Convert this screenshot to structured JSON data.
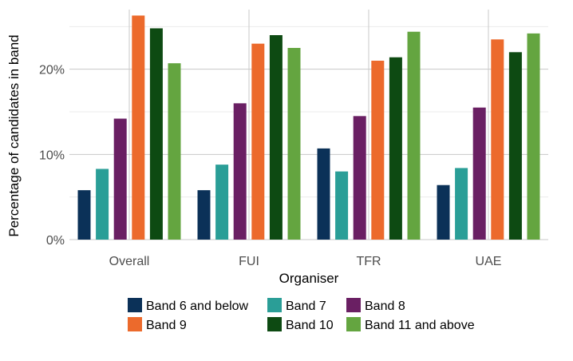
{
  "chart_data": {
    "type": "bar",
    "title": "",
    "xlabel": "Organiser",
    "ylabel": "Percentage of candidates in band",
    "categories": [
      "Overall",
      "FUI",
      "TFR",
      "UAE"
    ],
    "ylim": [
      0,
      27
    ],
    "yticks": [
      {
        "value": 0,
        "label": "0%"
      },
      {
        "value": 10,
        "label": "10%"
      },
      {
        "value": 20,
        "label": "20%"
      }
    ],
    "grid": true,
    "legend_position": "bottom",
    "series": [
      {
        "name": "Band 6 and below",
        "color": "#0b3158",
        "values": [
          5.8,
          5.8,
          10.7,
          6.4
        ]
      },
      {
        "name": "Band 7",
        "color": "#2a9e97",
        "values": [
          8.3,
          8.8,
          8.0,
          8.4
        ]
      },
      {
        "name": "Band 8",
        "color": "#6a1f63",
        "values": [
          14.2,
          16.0,
          14.5,
          15.5
        ]
      },
      {
        "name": "Band 9",
        "color": "#ec6a2c",
        "values": [
          26.3,
          23.0,
          21.0,
          23.5
        ]
      },
      {
        "name": "Band 10",
        "color": "#0d4a12",
        "values": [
          24.8,
          24.0,
          21.4,
          22.0
        ]
      },
      {
        "name": "Band 11 and above",
        "color": "#64a540",
        "values": [
          20.7,
          22.5,
          24.4,
          24.2
        ]
      }
    ]
  }
}
